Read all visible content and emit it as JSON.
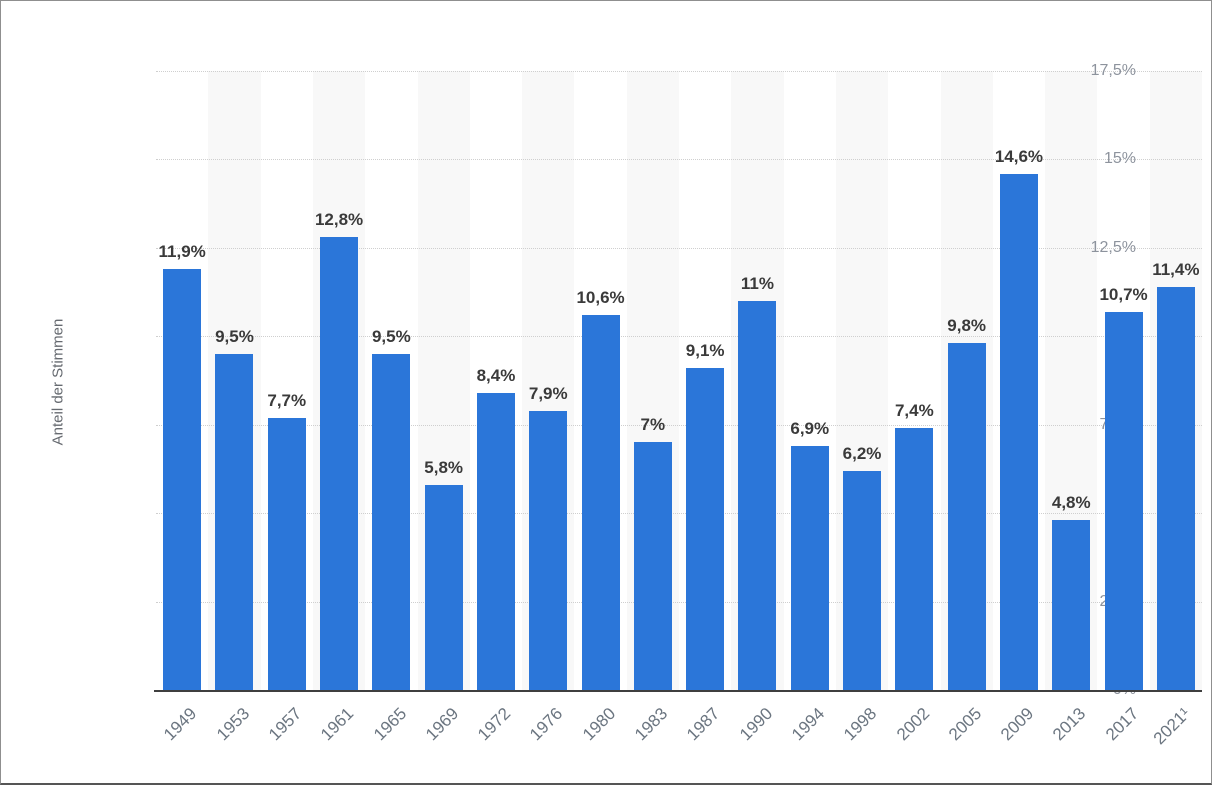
{
  "chart_data": {
    "type": "bar",
    "title": "",
    "xlabel": "",
    "ylabel": "Anteil der Stimmen",
    "categories": [
      "1949",
      "1953",
      "1957",
      "1961",
      "1965",
      "1969",
      "1972",
      "1976",
      "1980",
      "1983",
      "1987",
      "1990",
      "1994",
      "1998",
      "2002",
      "2005",
      "2009",
      "2013",
      "2017",
      "2021¹"
    ],
    "values": [
      11.9,
      9.5,
      7.7,
      12.8,
      9.5,
      5.8,
      8.4,
      7.9,
      10.6,
      7,
      9.1,
      11,
      6.9,
      6.2,
      7.4,
      9.8,
      14.6,
      4.8,
      10.7,
      11.4
    ],
    "value_labels": [
      "11,9%",
      "9,5%",
      "7,7%",
      "12,8%",
      "9,5%",
      "5,8%",
      "8,4%",
      "7,9%",
      "10,6%",
      "7%",
      "9,1%",
      "11%",
      "6,9%",
      "6,2%",
      "7,4%",
      "9,8%",
      "14,6%",
      "4,8%",
      "10,7%",
      "11,4%"
    ],
    "y_ticks": [
      {
        "value": 17.5,
        "label": "17,5%"
      },
      {
        "value": 15,
        "label": "15%"
      },
      {
        "value": 12.5,
        "label": "12,5%"
      },
      {
        "value": 10,
        "label": "10%"
      },
      {
        "value": 7.5,
        "label": "7,5%"
      },
      {
        "value": 5,
        "label": "5%"
      },
      {
        "value": 2.5,
        "label": "2,5%"
      },
      {
        "value": 0,
        "label": "0%"
      }
    ],
    "ylim": [
      0,
      17.5
    ],
    "grid": "horizontal-dotted",
    "legend": "none",
    "band_pattern": "alternating-columns",
    "colors": {
      "bar": "#2b76d9",
      "band": "#f8f8f8",
      "grid": "#cfcfcf",
      "axis_line": "#3f3f3f",
      "value_label": "#3a3a3a",
      "y_tick_label": "#8d939d",
      "x_tick_label": "#6b7580",
      "y_axis_title": "#666a70"
    }
  }
}
